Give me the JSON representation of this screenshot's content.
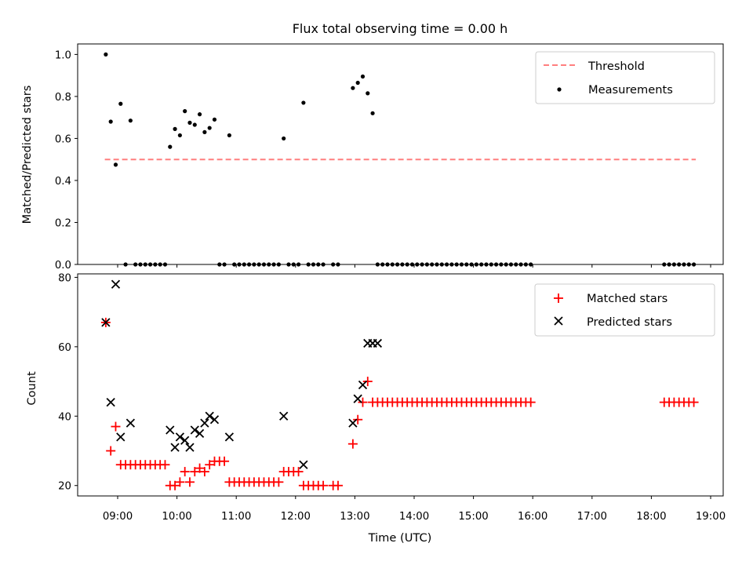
{
  "chart_data": {
    "title": "Flux total observing time = 0.00 h",
    "xlabel": "Time (UTC)",
    "x_tick_labels": [
      "09:00",
      "10:00",
      "11:00",
      "12:00",
      "13:00",
      "14:00",
      "15:00",
      "16:00",
      "17:00",
      "18:00",
      "19:00"
    ],
    "top": {
      "type": "scatter",
      "ylabel": "Matched/Predicted stars",
      "ylim": [
        0,
        1.05
      ],
      "y_ticks": [
        "0.0",
        "0.2",
        "0.4",
        "0.6",
        "0.8",
        "1.0"
      ],
      "legend_position": "top-right",
      "threshold": {
        "name": "Threshold",
        "value": 0.5,
        "x_range": [
          "08:47",
          "18:45"
        ],
        "color": "#ff7f7f"
      },
      "measurements": {
        "name": "Measurements",
        "color": "#000000",
        "points": [
          [
            "08:48",
            1.0
          ],
          [
            "08:53",
            0.68
          ],
          [
            "08:58",
            0.475
          ],
          [
            "09:03",
            0.765
          ],
          [
            "09:08",
            0.0
          ],
          [
            "09:13",
            0.685
          ],
          [
            "09:18",
            0.0
          ],
          [
            "09:23",
            0.0
          ],
          [
            "09:28",
            0.0
          ],
          [
            "09:33",
            0.0
          ],
          [
            "09:38",
            0.0
          ],
          [
            "09:43",
            0.0
          ],
          [
            "09:48",
            0.0
          ],
          [
            "09:53",
            0.56
          ],
          [
            "09:58",
            0.645
          ],
          [
            "10:03",
            0.615
          ],
          [
            "10:08",
            0.73
          ],
          [
            "10:13",
            0.675
          ],
          [
            "10:18",
            0.665
          ],
          [
            "10:23",
            0.715
          ],
          [
            "10:28",
            0.63
          ],
          [
            "10:33",
            0.65
          ],
          [
            "10:38",
            0.69
          ],
          [
            "10:43",
            0.0
          ],
          [
            "10:48",
            0.0
          ],
          [
            "10:53",
            0.615
          ],
          [
            "10:58",
            0.0
          ],
          [
            "11:03",
            0.0
          ],
          [
            "11:08",
            0.0
          ],
          [
            "11:13",
            0.0
          ],
          [
            "11:18",
            0.0
          ],
          [
            "11:23",
            0.0
          ],
          [
            "11:28",
            0.0
          ],
          [
            "11:33",
            0.0
          ],
          [
            "11:38",
            0.0
          ],
          [
            "11:43",
            0.0
          ],
          [
            "11:48",
            0.6
          ],
          [
            "11:53",
            0.0
          ],
          [
            "11:58",
            0.0
          ],
          [
            "12:03",
            0.0
          ],
          [
            "12:08",
            0.77
          ],
          [
            "12:13",
            0.0
          ],
          [
            "12:18",
            0.0
          ],
          [
            "12:23",
            0.0
          ],
          [
            "12:28",
            0.0
          ],
          [
            "12:38",
            0.0
          ],
          [
            "12:43",
            0.0
          ],
          [
            "12:58",
            0.84
          ],
          [
            "13:03",
            0.865
          ],
          [
            "13:08",
            0.895
          ],
          [
            "13:13",
            0.815
          ],
          [
            "13:18",
            0.72
          ],
          [
            "13:23",
            0.0
          ],
          [
            "13:28",
            0.0
          ],
          [
            "13:33",
            0.0
          ],
          [
            "13:38",
            0.0
          ],
          [
            "13:43",
            0.0
          ],
          [
            "13:48",
            0.0
          ],
          [
            "13:53",
            0.0
          ],
          [
            "13:58",
            0.0
          ],
          [
            "14:03",
            0.0
          ],
          [
            "14:08",
            0.0
          ],
          [
            "14:13",
            0.0
          ],
          [
            "14:18",
            0.0
          ],
          [
            "14:23",
            0.0
          ],
          [
            "14:28",
            0.0
          ],
          [
            "14:33",
            0.0
          ],
          [
            "14:38",
            0.0
          ],
          [
            "14:43",
            0.0
          ],
          [
            "14:48",
            0.0
          ],
          [
            "14:53",
            0.0
          ],
          [
            "14:58",
            0.0
          ],
          [
            "15:03",
            0.0
          ],
          [
            "15:08",
            0.0
          ],
          [
            "15:13",
            0.0
          ],
          [
            "15:18",
            0.0
          ],
          [
            "15:23",
            0.0
          ],
          [
            "15:28",
            0.0
          ],
          [
            "15:33",
            0.0
          ],
          [
            "15:38",
            0.0
          ],
          [
            "15:43",
            0.0
          ],
          [
            "15:48",
            0.0
          ],
          [
            "15:53",
            0.0
          ],
          [
            "15:58",
            0.0
          ],
          [
            "18:13",
            0.0
          ],
          [
            "18:18",
            0.0
          ],
          [
            "18:23",
            0.0
          ],
          [
            "18:28",
            0.0
          ],
          [
            "18:33",
            0.0
          ],
          [
            "18:38",
            0.0
          ],
          [
            "18:43",
            0.0
          ]
        ]
      }
    },
    "bottom": {
      "type": "scatter",
      "ylabel": "Count",
      "ylim": [
        17,
        81
      ],
      "y_ticks": [
        "20",
        "40",
        "60",
        "80"
      ],
      "legend_position": "top-right",
      "series": [
        {
          "name": "Matched stars",
          "marker": "+",
          "color": "#ff0000",
          "points": [
            [
              "08:48",
              67
            ],
            [
              "08:53",
              30
            ],
            [
              "08:58",
              37
            ],
            [
              "09:03",
              26
            ],
            [
              "09:08",
              26
            ],
            [
              "09:13",
              26
            ],
            [
              "09:18",
              26
            ],
            [
              "09:23",
              26
            ],
            [
              "09:28",
              26
            ],
            [
              "09:33",
              26
            ],
            [
              "09:38",
              26
            ],
            [
              "09:43",
              26
            ],
            [
              "09:48",
              26
            ],
            [
              "09:53",
              20
            ],
            [
              "09:58",
              20
            ],
            [
              "10:03",
              21
            ],
            [
              "10:08",
              24
            ],
            [
              "10:13",
              21
            ],
            [
              "10:18",
              24
            ],
            [
              "10:23",
              25
            ],
            [
              "10:28",
              24
            ],
            [
              "10:33",
              26
            ],
            [
              "10:38",
              27
            ],
            [
              "10:43",
              27
            ],
            [
              "10:48",
              27
            ],
            [
              "10:53",
              21
            ],
            [
              "10:58",
              21
            ],
            [
              "11:03",
              21
            ],
            [
              "11:08",
              21
            ],
            [
              "11:13",
              21
            ],
            [
              "11:18",
              21
            ],
            [
              "11:23",
              21
            ],
            [
              "11:28",
              21
            ],
            [
              "11:33",
              21
            ],
            [
              "11:38",
              21
            ],
            [
              "11:43",
              21
            ],
            [
              "11:48",
              24
            ],
            [
              "11:53",
              24
            ],
            [
              "11:58",
              24
            ],
            [
              "12:03",
              24
            ],
            [
              "12:08",
              20
            ],
            [
              "12:13",
              20
            ],
            [
              "12:18",
              20
            ],
            [
              "12:23",
              20
            ],
            [
              "12:28",
              20
            ],
            [
              "12:38",
              20
            ],
            [
              "12:43",
              20
            ],
            [
              "12:58",
              32
            ],
            [
              "13:03",
              39
            ],
            [
              "13:08",
              44
            ],
            [
              "13:13",
              50
            ],
            [
              "13:18",
              44
            ],
            [
              "13:23",
              44
            ],
            [
              "13:28",
              44
            ],
            [
              "13:33",
              44
            ],
            [
              "13:38",
              44
            ],
            [
              "13:43",
              44
            ],
            [
              "13:48",
              44
            ],
            [
              "13:53",
              44
            ],
            [
              "13:58",
              44
            ],
            [
              "14:03",
              44
            ],
            [
              "14:08",
              44
            ],
            [
              "14:13",
              44
            ],
            [
              "14:18",
              44
            ],
            [
              "14:23",
              44
            ],
            [
              "14:28",
              44
            ],
            [
              "14:33",
              44
            ],
            [
              "14:38",
              44
            ],
            [
              "14:43",
              44
            ],
            [
              "14:48",
              44
            ],
            [
              "14:53",
              44
            ],
            [
              "14:58",
              44
            ],
            [
              "15:03",
              44
            ],
            [
              "15:08",
              44
            ],
            [
              "15:13",
              44
            ],
            [
              "15:18",
              44
            ],
            [
              "15:23",
              44
            ],
            [
              "15:28",
              44
            ],
            [
              "15:33",
              44
            ],
            [
              "15:38",
              44
            ],
            [
              "15:43",
              44
            ],
            [
              "15:48",
              44
            ],
            [
              "15:53",
              44
            ],
            [
              "15:58",
              44
            ],
            [
              "18:13",
              44
            ],
            [
              "18:18",
              44
            ],
            [
              "18:23",
              44
            ],
            [
              "18:28",
              44
            ],
            [
              "18:33",
              44
            ],
            [
              "18:38",
              44
            ],
            [
              "18:43",
              44
            ]
          ]
        },
        {
          "name": "Predicted stars",
          "marker": "x",
          "color": "#000000",
          "points": [
            [
              "08:48",
              67
            ],
            [
              "08:53",
              44
            ],
            [
              "08:58",
              78
            ],
            [
              "09:03",
              34
            ],
            [
              "09:13",
              38
            ],
            [
              "09:53",
              36
            ],
            [
              "09:58",
              31
            ],
            [
              "10:03",
              34
            ],
            [
              "10:08",
              33
            ],
            [
              "10:13",
              31
            ],
            [
              "10:18",
              36
            ],
            [
              "10:23",
              35
            ],
            [
              "10:28",
              38
            ],
            [
              "10:33",
              40
            ],
            [
              "10:38",
              39
            ],
            [
              "10:53",
              34
            ],
            [
              "11:48",
              40
            ],
            [
              "12:08",
              26
            ],
            [
              "12:58",
              38
            ],
            [
              "13:03",
              45
            ],
            [
              "13:08",
              49
            ],
            [
              "13:13",
              61
            ],
            [
              "13:18",
              61
            ],
            [
              "13:23",
              61
            ]
          ]
        }
      ]
    }
  }
}
